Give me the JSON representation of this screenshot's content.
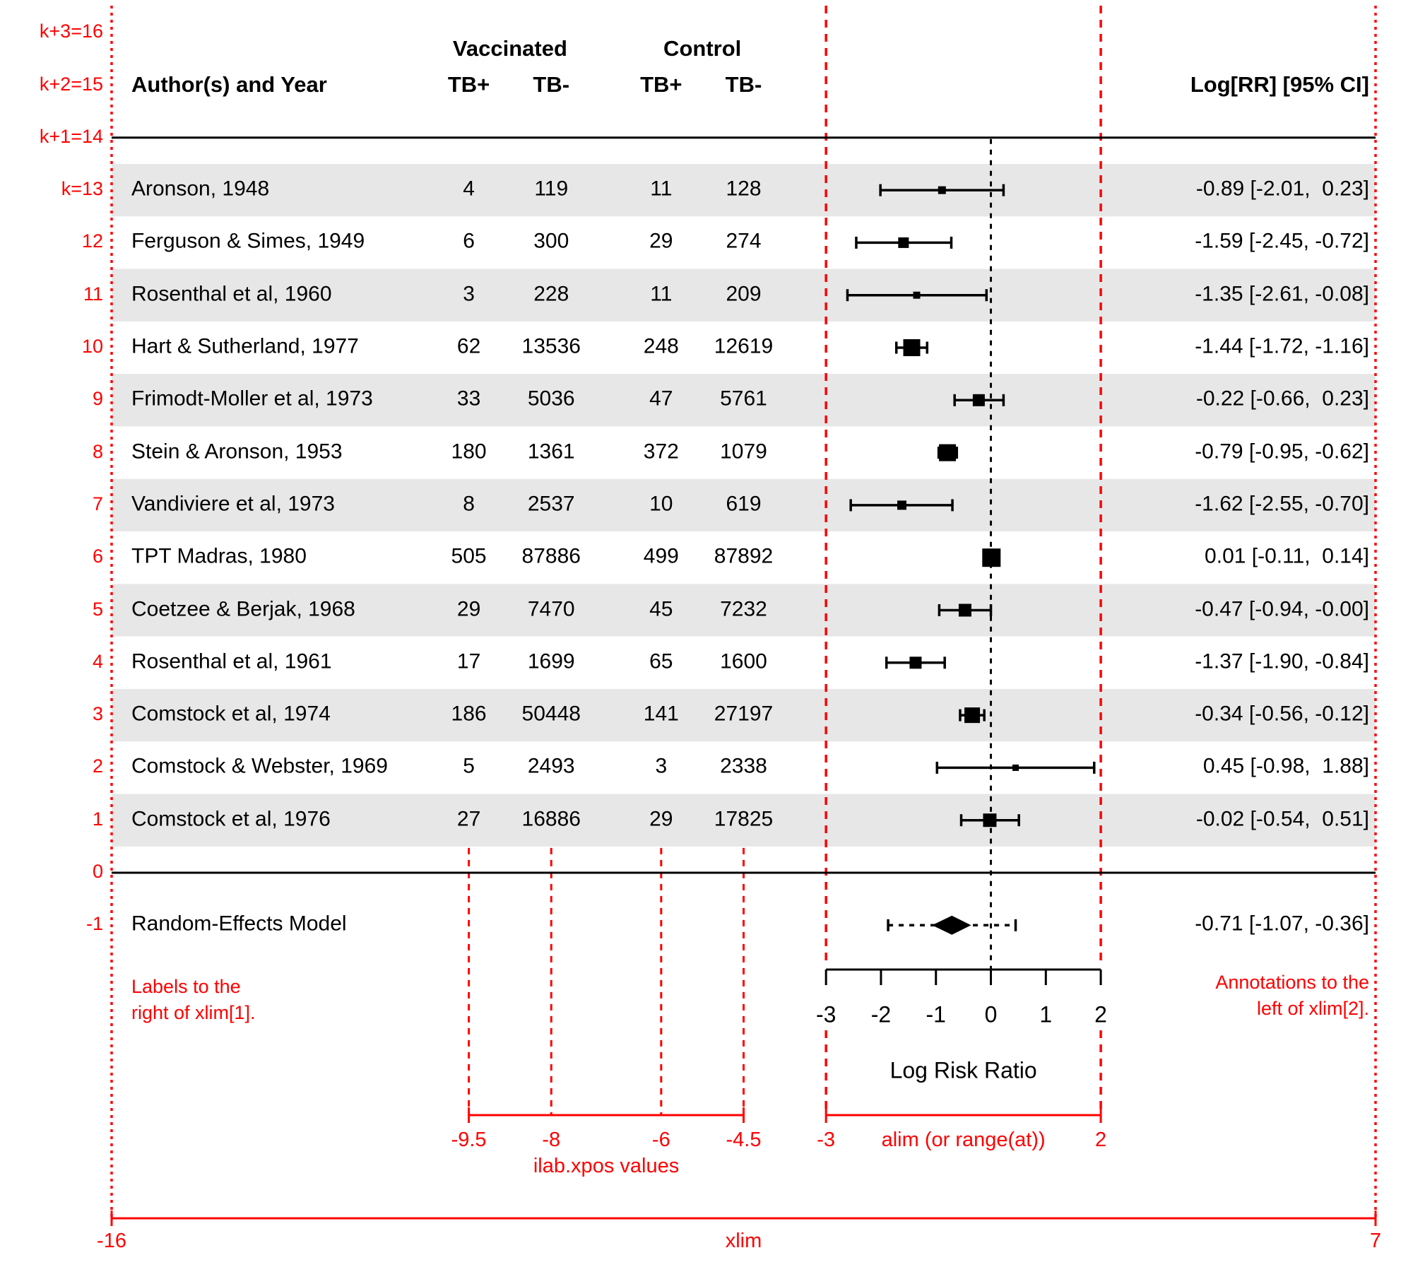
{
  "colors": {
    "annotation_red": "#FF0000",
    "band_gray": "#E7E7E7",
    "data_black": "#000000"
  },
  "header": {
    "author_col": "Author(s) and Year",
    "group1": "Vaccinated",
    "group2": "Control",
    "sub_cols": [
      "TB+",
      "TB-",
      "TB+",
      "TB-"
    ],
    "annotation_col": "Log[RR] [95% CI]"
  },
  "row_axis_labels": [
    "k+3=16",
    "k+2=15",
    "k+1=14",
    "k=13",
    "12",
    "11",
    "10",
    "9",
    "8",
    "7",
    "6",
    "5",
    "4",
    "3",
    "2",
    "1",
    "0",
    "-1"
  ],
  "chart_data": {
    "type": "forest",
    "xlabel": "Log Risk Ratio",
    "axis_ticks": [
      -3,
      -2,
      -1,
      0,
      1,
      2
    ],
    "xlim": [
      -16,
      7
    ],
    "alim": [
      -3,
      2
    ],
    "ilab_xpos": [
      -9.5,
      -8,
      -6,
      -4.5
    ],
    "zero_line": 0,
    "grid": false,
    "studies": [
      {
        "k": 13,
        "author": "Aronson, 1948",
        "vaccinated_tb_pos": "4",
        "vaccinated_tb_neg": "119",
        "control_tb_pos": "11",
        "control_tb_neg": "128",
        "est": -0.89,
        "lo": -2.01,
        "hi": 0.23,
        "annotation": "-0.89 [-2.01,  0.23]",
        "psize": 11,
        "shaded": true
      },
      {
        "k": 12,
        "author": "Ferguson & Simes, 1949",
        "vaccinated_tb_pos": "6",
        "vaccinated_tb_neg": "300",
        "control_tb_pos": "29",
        "control_tb_neg": "274",
        "est": -1.59,
        "lo": -2.45,
        "hi": -0.72,
        "annotation": "-1.59 [-2.45, -0.72]",
        "psize": 15,
        "shaded": false
      },
      {
        "k": 11,
        "author": "Rosenthal et al, 1960",
        "vaccinated_tb_pos": "3",
        "vaccinated_tb_neg": "228",
        "control_tb_pos": "11",
        "control_tb_neg": "209",
        "est": -1.35,
        "lo": -2.61,
        "hi": -0.08,
        "annotation": "-1.35 [-2.61, -0.08]",
        "psize": 10,
        "shaded": true
      },
      {
        "k": 10,
        "author": "Hart & Sutherland, 1977",
        "vaccinated_tb_pos": "62",
        "vaccinated_tb_neg": "13536",
        "control_tb_pos": "248",
        "control_tb_neg": "12619",
        "est": -1.44,
        "lo": -1.72,
        "hi": -1.16,
        "annotation": "-1.44 [-1.72, -1.16]",
        "psize": 24,
        "shaded": false
      },
      {
        "k": 9,
        "author": "Frimodt-Moller et al, 1973",
        "vaccinated_tb_pos": "33",
        "vaccinated_tb_neg": "5036",
        "control_tb_pos": "47",
        "control_tb_neg": "5761",
        "est": -0.22,
        "lo": -0.66,
        "hi": 0.23,
        "annotation": "-0.22 [-0.66,  0.23]",
        "psize": 17,
        "shaded": true
      },
      {
        "k": 8,
        "author": "Stein & Aronson, 1953",
        "vaccinated_tb_pos": "180",
        "vaccinated_tb_neg": "1361",
        "control_tb_pos": "372",
        "control_tb_neg": "1079",
        "est": -0.79,
        "lo": -0.95,
        "hi": -0.62,
        "annotation": "-0.79 [-0.95, -0.62]",
        "psize": 24,
        "shaded": false
      },
      {
        "k": 7,
        "author": "Vandiviere et al, 1973",
        "vaccinated_tb_pos": "8",
        "vaccinated_tb_neg": "2537",
        "control_tb_pos": "10",
        "control_tb_neg": "619",
        "est": -1.62,
        "lo": -2.55,
        "hi": -0.7,
        "annotation": "-1.62 [-2.55, -0.70]",
        "psize": 13,
        "shaded": true
      },
      {
        "k": 6,
        "author": "TPT Madras, 1980",
        "vaccinated_tb_pos": "505",
        "vaccinated_tb_neg": "87886",
        "control_tb_pos": "499",
        "control_tb_neg": "87892",
        "est": 0.01,
        "lo": -0.11,
        "hi": 0.14,
        "annotation": "0.01 [-0.11,  0.14]",
        "psize": 26,
        "shaded": false
      },
      {
        "k": 5,
        "author": "Coetzee & Berjak, 1968",
        "vaccinated_tb_pos": "29",
        "vaccinated_tb_neg": "7470",
        "control_tb_pos": "45",
        "control_tb_neg": "7232",
        "est": -0.47,
        "lo": -0.94,
        "hi": 0.0,
        "annotation": "-0.47 [-0.94, -0.00]",
        "psize": 18,
        "shaded": true
      },
      {
        "k": 4,
        "author": "Rosenthal et al, 1961",
        "vaccinated_tb_pos": "17",
        "vaccinated_tb_neg": "1699",
        "control_tb_pos": "65",
        "control_tb_neg": "1600",
        "est": -1.37,
        "lo": -1.9,
        "hi": -0.84,
        "annotation": "-1.37 [-1.90, -0.84]",
        "psize": 17,
        "shaded": false
      },
      {
        "k": 3,
        "author": "Comstock et al, 1974",
        "vaccinated_tb_pos": "186",
        "vaccinated_tb_neg": "50448",
        "control_tb_pos": "141",
        "control_tb_neg": "27197",
        "est": -0.34,
        "lo": -0.56,
        "hi": -0.12,
        "annotation": "-0.34 [-0.56, -0.12]",
        "psize": 22,
        "shaded": true
      },
      {
        "k": 2,
        "author": "Comstock & Webster, 1969",
        "vaccinated_tb_pos": "5",
        "vaccinated_tb_neg": "2493",
        "control_tb_pos": "3",
        "control_tb_neg": "2338",
        "est": 0.45,
        "lo": -0.98,
        "hi": 1.88,
        "annotation": "0.45 [-0.98,  1.88]",
        "psize": 9,
        "shaded": false
      },
      {
        "k": 1,
        "author": "Comstock et al, 1976",
        "vaccinated_tb_pos": "27",
        "vaccinated_tb_neg": "16886",
        "control_tb_pos": "29",
        "control_tb_neg": "17825",
        "est": -0.02,
        "lo": -0.54,
        "hi": 0.51,
        "annotation": "-0.02 [-0.54,  0.51]",
        "psize": 19,
        "shaded": true
      }
    ],
    "summary": {
      "k": -1,
      "label": "Random-Effects Model",
      "est": -0.71,
      "lo": -1.07,
      "hi": -0.36,
      "pred_lo": -1.87,
      "pred_hi": 0.45,
      "annotation": "-0.71 [-1.07, -0.36]"
    }
  },
  "red_annotations": {
    "left_note": [
      "Labels to the",
      "right of xlim[1]."
    ],
    "right_note": [
      "Annotations to the",
      "left of xlim[2]."
    ],
    "ilab_axis": {
      "tick_labels": [
        "-9.5",
        "-8",
        "-6",
        "-4.5"
      ],
      "caption": "ilab.xpos values"
    },
    "alim_axis": {
      "left_label": "-3",
      "right_label": "2",
      "caption": "alim (or range(at))"
    },
    "xlim_axis": {
      "left_label": "-16",
      "right_label": "7",
      "caption": "xlim"
    }
  }
}
